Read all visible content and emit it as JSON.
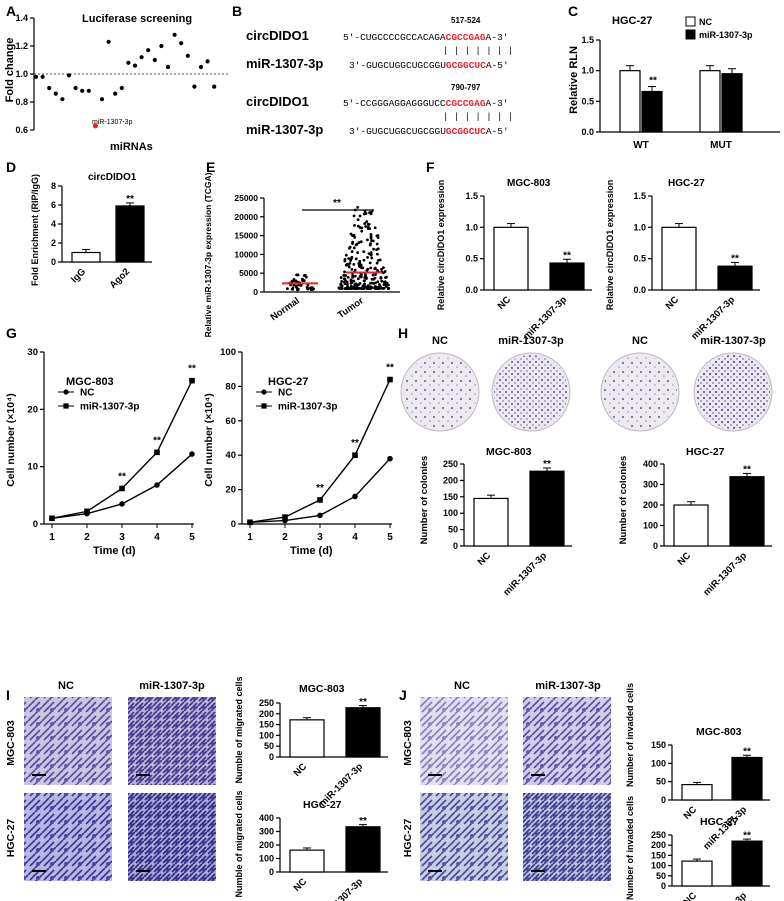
{
  "panels": {
    "A": {
      "letter": "A",
      "title": "Luciferase screening",
      "ylabel": "Fold change",
      "xlabel": "miRNAs",
      "yticks": [
        "0.6",
        "0.8",
        "1.0",
        "1.2",
        "1.4"
      ],
      "highlight_label": "miR-1307-3p",
      "highlight_color": "#e8242a"
    },
    "B": {
      "letter": "B",
      "site1_pos": "517-524",
      "site2_pos": "790-797",
      "circ_name": "circDIDO1",
      "mir_name": "miR-1307-3p",
      "site1_circ_prefix": "5'-CUGCCCCGCCACAGA",
      "site1_circ_seed": "CGCCGAG",
      "site1_circ_suffix": "A-3'",
      "site1_mir_prefix": "3'-GUGCUGGCUGCGGU",
      "site1_mir_seed": "GCGGCUC",
      "site1_mir_suffix": "A-5'",
      "site2_circ_prefix": "5'-CCGGGAGGAGGGUCC",
      "site2_circ_seed": "CGCCGAG",
      "site2_circ_suffix": "A-3'",
      "site2_mir_prefix": "3'-GUGCUGGCUGCGGU",
      "site2_mir_seed": "GCGGCUC",
      "site2_mir_suffix": "A-5'",
      "pairing": "| | | | | | |",
      "seed_color": "#e8242a"
    },
    "C": {
      "letter": "C",
      "title": "HGC-27",
      "ylabel": "Relative RLN",
      "yticks": [
        "0.0",
        "0.5",
        "1.0",
        "1.5"
      ],
      "groups": [
        "WT",
        "MUT"
      ],
      "legend": [
        "NC",
        "miR-1307-3p"
      ],
      "sig": "**"
    },
    "D": {
      "letter": "D",
      "title": "circDIDO1",
      "ylabel": "Fold Enrichment (RIP/IgG)",
      "yticks": [
        "0",
        "2",
        "4",
        "6",
        "8"
      ],
      "categories": [
        "IgG",
        "Ago2"
      ],
      "sig": "**"
    },
    "E": {
      "letter": "E",
      "ylabel": "Relative miR-1307-3p expression (TCGA)",
      "yticks": [
        "0",
        "5000",
        "10000",
        "15000",
        "20000",
        "25000"
      ],
      "categories": [
        "Normal",
        "Tumor"
      ],
      "sig": "**"
    },
    "F": {
      "letter": "F",
      "ylabel": "Relative circDIDO1 expression",
      "yticks": [
        "0.0",
        "0.5",
        "1.0",
        "1.5"
      ],
      "categories": [
        "NC",
        "miR-1307-3p"
      ],
      "left_title": "MGC-803",
      "right_title": "HGC-27",
      "sig": "**"
    },
    "G": {
      "letter": "G",
      "xlabel": "Time (d)",
      "xticks": [
        "1",
        "2",
        "3",
        "4",
        "5"
      ],
      "left_title": "MGC-803",
      "right_title": "HGC-27",
      "left_ylabel": "Cell number (×10⁴)",
      "right_ylabel": "Cell number (×10⁴)",
      "left_yticks": [
        "0",
        "10",
        "20",
        "30"
      ],
      "right_yticks": [
        "0",
        "20",
        "40",
        "60",
        "80",
        "100"
      ],
      "legend": [
        "NC",
        "miR-1307-3p"
      ],
      "sig": "**"
    },
    "H": {
      "letter": "H",
      "photo_labels": [
        "NC",
        "miR-1307-3p",
        "NC",
        "miR-1307-3p"
      ],
      "left_title": "MGC-803",
      "right_title": "HGC-27",
      "ylabel": "Number of colonies",
      "left_yticks": [
        "0",
        "50",
        "100",
        "150",
        "200",
        "250"
      ],
      "right_yticks": [
        "0",
        "100",
        "200",
        "300",
        "400"
      ],
      "categories": [
        "NC",
        "miR-1307-3p"
      ],
      "sig": "**"
    },
    "I": {
      "letter": "I",
      "col_labels": [
        "NC",
        "miR-1307-3p"
      ],
      "row_labels": [
        "MGC-803",
        "HGC-27"
      ],
      "top_title": "MGC-803",
      "bottom_title": "HGC-27",
      "ylabel": "Numble of migrated cells",
      "top_yticks": [
        "0",
        "50",
        "100",
        "150",
        "200",
        "250"
      ],
      "bottom_yticks": [
        "0",
        "100",
        "200",
        "300",
        "400"
      ],
      "categories": [
        "NC",
        "miR-1307-3p"
      ],
      "sig": "**"
    },
    "J": {
      "letter": "J",
      "col_labels": [
        "NC",
        "miR-1307-3p"
      ],
      "row_labels": [
        "MGC-803",
        "HGC-27"
      ],
      "top_title": "MGC-803",
      "bottom_title": "HGC-27",
      "ylabel": "Number of invaded cells",
      "top_yticks": [
        "0",
        "50",
        "100",
        "150"
      ],
      "bottom_yticks": [
        "0",
        "50",
        "100",
        "150",
        "200",
        "250"
      ],
      "categories": [
        "NC",
        "miR-1307-3p"
      ],
      "sig": "**"
    }
  },
  "chart_data": [
    {
      "panel": "A",
      "type": "scatter",
      "ylim": [
        0.6,
        1.4
      ],
      "ylabel": "Fold change",
      "xlabel": "miRNAs",
      "title": "Luciferase screening",
      "values": [
        0.98,
        0.98,
        0.9,
        0.86,
        0.82,
        0.99,
        0.9,
        0.88,
        0.88,
        0.63,
        0.82,
        1.23,
        0.86,
        0.9,
        1.08,
        1.06,
        1.12,
        1.17,
        1.1,
        1.2,
        1.05,
        1.28,
        1.22,
        1.13,
        0.91,
        1.05,
        1.09,
        0.91
      ]
    },
    {
      "panel": "C",
      "type": "bar",
      "categories": [
        "WT",
        "MUT"
      ],
      "ylim": [
        0,
        1.5
      ],
      "ylabel": "Relative RLN",
      "series": [
        {
          "name": "NC",
          "values": [
            1.0,
            1.0
          ]
        },
        {
          "name": "miR-1307-3p",
          "values": [
            0.66,
            0.95
          ]
        }
      ]
    },
    {
      "panel": "D",
      "type": "bar",
      "categories": [
        "IgG",
        "Ago2"
      ],
      "values": [
        1.0,
        5.9
      ],
      "ylim": [
        0,
        8
      ]
    },
    {
      "panel": "E",
      "type": "scatter",
      "categories": [
        "Normal",
        "Tumor"
      ],
      "medians": [
        2300,
        5200
      ],
      "ylim": [
        0,
        25000
      ]
    },
    {
      "panel": "F-MGC-803",
      "type": "bar",
      "categories": [
        "NC",
        "miR-1307-3p"
      ],
      "values": [
        1.0,
        0.43
      ],
      "ylim": [
        0,
        1.5
      ]
    },
    {
      "panel": "F-HGC-27",
      "type": "bar",
      "categories": [
        "NC",
        "miR-1307-3p"
      ],
      "values": [
        1.0,
        0.38
      ],
      "ylim": [
        0,
        1.5
      ]
    },
    {
      "panel": "G-MGC-803",
      "type": "line",
      "x": [
        1,
        2,
        3,
        4,
        5
      ],
      "ylim": [
        0,
        30
      ],
      "series": [
        {
          "name": "NC",
          "values": [
            1,
            1.8,
            3.5,
            6.8,
            12.2
          ]
        },
        {
          "name": "miR-1307-3p",
          "values": [
            1,
            2.2,
            6.2,
            12.5,
            25
          ]
        }
      ]
    },
    {
      "panel": "G-HGC-27",
      "type": "line",
      "x": [
        1,
        2,
        3,
        4,
        5
      ],
      "ylim": [
        0,
        100
      ],
      "series": [
        {
          "name": "NC",
          "values": [
            1,
            2,
            5,
            16,
            38
          ]
        },
        {
          "name": "miR-1307-3p",
          "values": [
            1,
            4,
            14,
            40,
            84
          ]
        }
      ]
    },
    {
      "panel": "H-MGC-803",
      "type": "bar",
      "categories": [
        "NC",
        "miR-1307-3p"
      ],
      "values": [
        145,
        228
      ],
      "ylim": [
        0,
        250
      ]
    },
    {
      "panel": "H-HGC-27",
      "type": "bar",
      "categories": [
        "NC",
        "miR-1307-3p"
      ],
      "values": [
        200,
        338
      ],
      "ylim": [
        0,
        400
      ]
    },
    {
      "panel": "I-MGC-803",
      "type": "bar",
      "categories": [
        "NC",
        "miR-1307-3p"
      ],
      "values": [
        172,
        228
      ],
      "ylim": [
        0,
        250
      ]
    },
    {
      "panel": "I-HGC-27",
      "type": "bar",
      "categories": [
        "NC",
        "miR-1307-3p"
      ],
      "values": [
        162,
        335
      ],
      "ylim": [
        0,
        400
      ]
    },
    {
      "panel": "J-MGC-803",
      "type": "bar",
      "categories": [
        "NC",
        "miR-1307-3p"
      ],
      "values": [
        42,
        116
      ],
      "ylim": [
        0,
        150
      ]
    },
    {
      "panel": "J-HGC-27",
      "type": "bar",
      "categories": [
        "NC",
        "miR-1307-3p"
      ],
      "values": [
        122,
        220
      ],
      "ylim": [
        0,
        250
      ]
    }
  ]
}
